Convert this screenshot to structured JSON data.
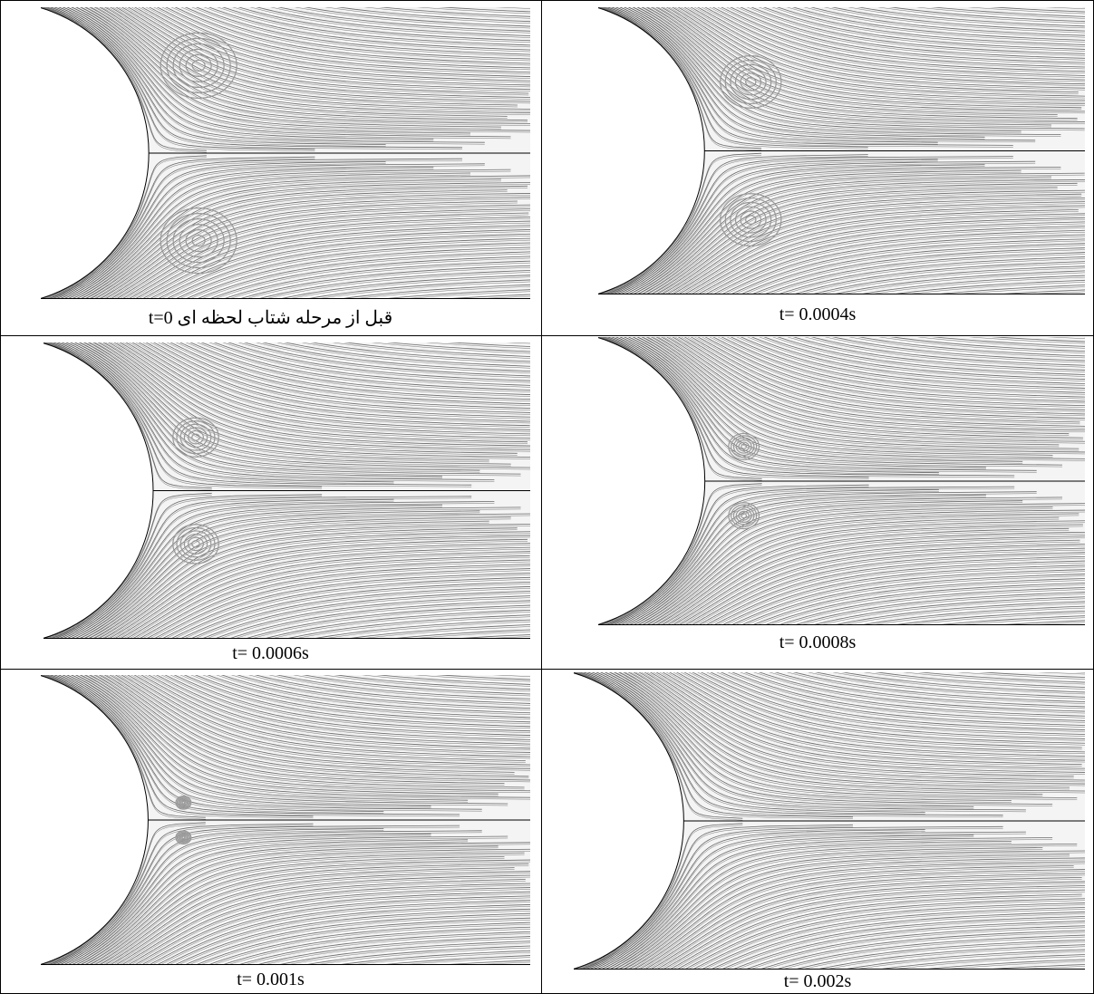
{
  "panels": [
    {
      "caption": "قبل از مرحله شتاب لحظه ای t=0"
    },
    {
      "caption": "t= 0.0004s"
    },
    {
      "caption": "t= 0.0006s"
    },
    {
      "caption": "t= 0.0008s"
    },
    {
      "caption": "t= 0.001s"
    },
    {
      "caption": "t= 0.002s"
    }
  ]
}
